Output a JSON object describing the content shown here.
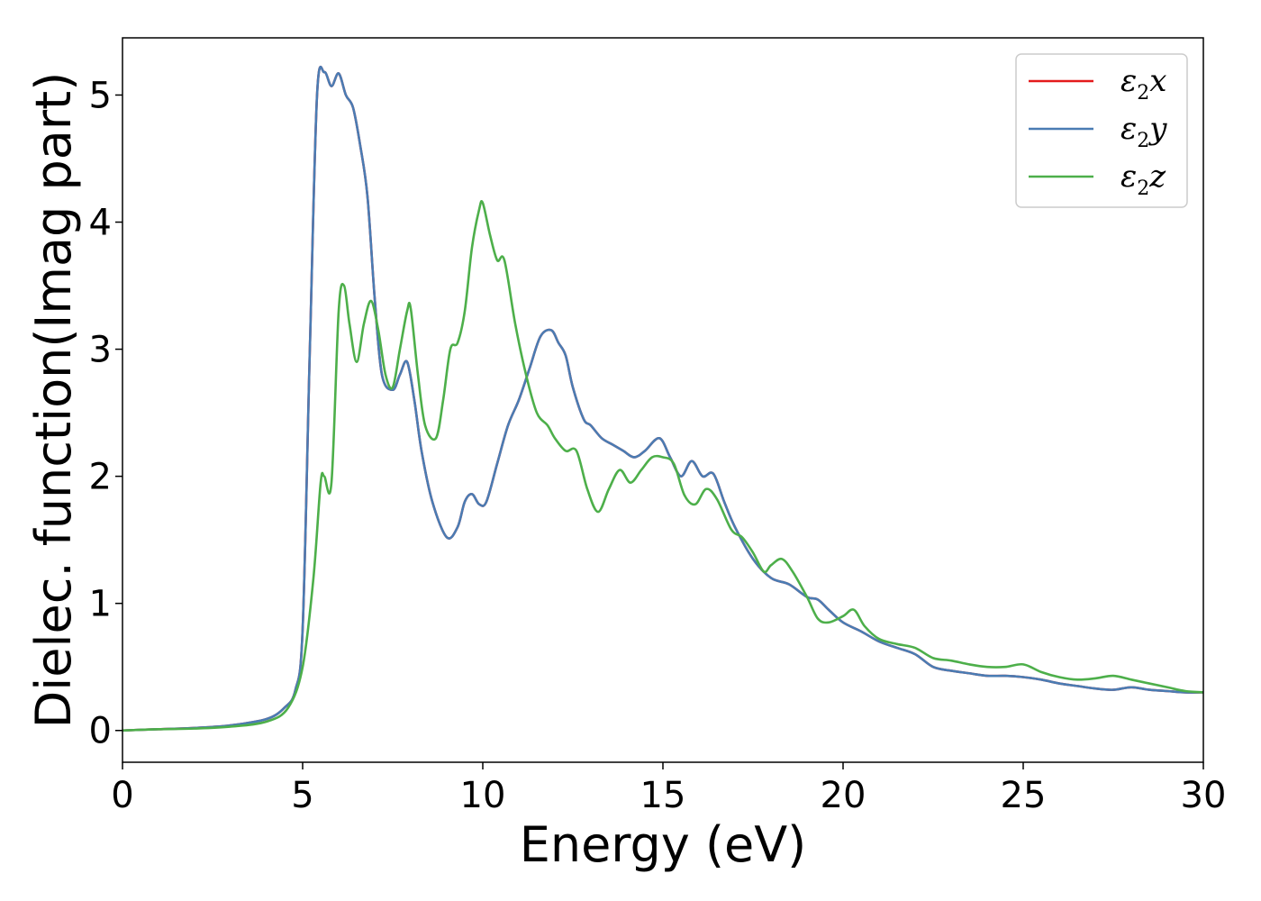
{
  "chart_data": {
    "type": "line",
    "title": "",
    "xlabel": "Energy (eV)",
    "ylabel": "Dielec. function(Imag part)",
    "xlim": [
      0,
      30
    ],
    "ylim": [
      -0.25,
      5.45
    ],
    "xticks": [
      0,
      5,
      10,
      15,
      20,
      25,
      30
    ],
    "yticks": [
      0,
      1,
      2,
      3,
      4,
      5
    ],
    "grid": false,
    "legend_position": "top-right",
    "series": [
      {
        "name": "ε2x",
        "symbol": "ε",
        "sub": "2",
        "suffix": "x",
        "color": "#e41a1c",
        "x": [
          0,
          1,
          2,
          3,
          4,
          4.5,
          4.8,
          5.0,
          5.2,
          5.4,
          5.6,
          5.8,
          6.0,
          6.2,
          6.4,
          6.6,
          6.8,
          7.0,
          7.2,
          7.5,
          7.7,
          7.9,
          8.1,
          8.3,
          8.6,
          9.0,
          9.3,
          9.5,
          9.7,
          9.9,
          10.1,
          10.4,
          10.7,
          11.0,
          11.3,
          11.6,
          11.9,
          12.1,
          12.3,
          12.5,
          12.8,
          13.0,
          13.3,
          13.6,
          13.9,
          14.2,
          14.5,
          14.9,
          15.2,
          15.5,
          15.8,
          16.1,
          16.4,
          16.7,
          17.0,
          17.5,
          18.0,
          18.5,
          19.0,
          19.3,
          19.6,
          20.0,
          20.5,
          21.0,
          21.5,
          22.0,
          22.5,
          23.0,
          23.5,
          24.0,
          24.5,
          25.0,
          25.5,
          26.0,
          26.5,
          27.0,
          27.5,
          28.0,
          28.5,
          29.0,
          29.5,
          30.0
        ],
        "y": [
          0.0,
          0.01,
          0.02,
          0.04,
          0.09,
          0.18,
          0.32,
          0.8,
          3.0,
          5.0,
          5.18,
          5.07,
          5.17,
          5.0,
          4.9,
          4.6,
          4.2,
          3.4,
          2.8,
          2.68,
          2.8,
          2.9,
          2.6,
          2.2,
          1.8,
          1.52,
          1.6,
          1.8,
          1.86,
          1.78,
          1.8,
          2.1,
          2.4,
          2.6,
          2.85,
          3.1,
          3.15,
          3.05,
          2.95,
          2.7,
          2.45,
          2.4,
          2.3,
          2.25,
          2.2,
          2.15,
          2.2,
          2.3,
          2.15,
          2.0,
          2.12,
          2.0,
          2.02,
          1.8,
          1.6,
          1.35,
          1.2,
          1.15,
          1.05,
          1.03,
          0.95,
          0.85,
          0.78,
          0.7,
          0.65,
          0.6,
          0.5,
          0.47,
          0.45,
          0.43,
          0.43,
          0.42,
          0.4,
          0.37,
          0.35,
          0.33,
          0.32,
          0.34,
          0.32,
          0.31,
          0.3,
          0.3
        ]
      },
      {
        "name": "ε2y",
        "symbol": "ε",
        "sub": "2",
        "suffix": "y",
        "color": "#4a7cb3",
        "x": [
          0,
          1,
          2,
          3,
          4,
          4.5,
          4.8,
          5.0,
          5.2,
          5.4,
          5.6,
          5.8,
          6.0,
          6.2,
          6.4,
          6.6,
          6.8,
          7.0,
          7.2,
          7.5,
          7.7,
          7.9,
          8.1,
          8.3,
          8.6,
          9.0,
          9.3,
          9.5,
          9.7,
          9.9,
          10.1,
          10.4,
          10.7,
          11.0,
          11.3,
          11.6,
          11.9,
          12.1,
          12.3,
          12.5,
          12.8,
          13.0,
          13.3,
          13.6,
          13.9,
          14.2,
          14.5,
          14.9,
          15.2,
          15.5,
          15.8,
          16.1,
          16.4,
          16.7,
          17.0,
          17.5,
          18.0,
          18.5,
          19.0,
          19.3,
          19.6,
          20.0,
          20.5,
          21.0,
          21.5,
          22.0,
          22.5,
          23.0,
          23.5,
          24.0,
          24.5,
          25.0,
          25.5,
          26.0,
          26.5,
          27.0,
          27.5,
          28.0,
          28.5,
          29.0,
          29.5,
          30.0
        ],
        "y": [
          0.0,
          0.01,
          0.02,
          0.04,
          0.09,
          0.18,
          0.32,
          0.8,
          3.0,
          5.0,
          5.18,
          5.07,
          5.17,
          5.0,
          4.9,
          4.6,
          4.2,
          3.4,
          2.8,
          2.68,
          2.8,
          2.9,
          2.6,
          2.2,
          1.8,
          1.52,
          1.6,
          1.8,
          1.86,
          1.78,
          1.8,
          2.1,
          2.4,
          2.6,
          2.85,
          3.1,
          3.15,
          3.05,
          2.95,
          2.7,
          2.45,
          2.4,
          2.3,
          2.25,
          2.2,
          2.15,
          2.2,
          2.3,
          2.15,
          2.0,
          2.12,
          2.0,
          2.02,
          1.8,
          1.6,
          1.35,
          1.2,
          1.15,
          1.05,
          1.03,
          0.95,
          0.85,
          0.78,
          0.7,
          0.65,
          0.6,
          0.5,
          0.47,
          0.45,
          0.43,
          0.43,
          0.42,
          0.4,
          0.37,
          0.35,
          0.33,
          0.32,
          0.34,
          0.32,
          0.31,
          0.3,
          0.3
        ]
      },
      {
        "name": "ε2z",
        "symbol": "ε",
        "sub": "2",
        "suffix": "z",
        "color": "#4daf4a",
        "x": [
          0,
          1,
          2,
          3,
          4,
          4.6,
          5.0,
          5.3,
          5.5,
          5.6,
          5.8,
          6.0,
          6.15,
          6.3,
          6.5,
          6.7,
          6.9,
          7.1,
          7.3,
          7.5,
          7.7,
          7.9,
          8.0,
          8.2,
          8.4,
          8.7,
          8.9,
          9.1,
          9.3,
          9.5,
          9.7,
          9.9,
          10.0,
          10.2,
          10.4,
          10.6,
          10.9,
          11.2,
          11.5,
          11.8,
          12.0,
          12.3,
          12.6,
          12.9,
          13.2,
          13.5,
          13.8,
          14.1,
          14.4,
          14.7,
          15.0,
          15.3,
          15.6,
          15.9,
          16.2,
          16.5,
          16.9,
          17.2,
          17.5,
          17.8,
          18.0,
          18.3,
          18.6,
          19.0,
          19.3,
          19.6,
          20.0,
          20.3,
          20.6,
          21.0,
          21.5,
          22.0,
          22.5,
          23.0,
          23.5,
          24.0,
          24.5,
          25.0,
          25.5,
          26.0,
          26.5,
          27.0,
          27.5,
          28.0,
          28.5,
          29.0,
          29.5,
          30.0
        ],
        "y": [
          0.0,
          0.01,
          0.015,
          0.03,
          0.07,
          0.18,
          0.5,
          1.2,
          1.95,
          2.0,
          1.95,
          3.3,
          3.5,
          3.2,
          2.9,
          3.2,
          3.38,
          3.15,
          2.8,
          2.7,
          3.0,
          3.3,
          3.32,
          2.8,
          2.4,
          2.3,
          2.6,
          3.0,
          3.05,
          3.3,
          3.8,
          4.1,
          4.15,
          3.9,
          3.7,
          3.7,
          3.2,
          2.8,
          2.5,
          2.4,
          2.3,
          2.2,
          2.2,
          1.9,
          1.72,
          1.9,
          2.05,
          1.95,
          2.05,
          2.15,
          2.15,
          2.1,
          1.85,
          1.78,
          1.9,
          1.82,
          1.58,
          1.52,
          1.4,
          1.25,
          1.3,
          1.35,
          1.25,
          1.05,
          0.88,
          0.85,
          0.9,
          0.95,
          0.82,
          0.72,
          0.68,
          0.65,
          0.57,
          0.55,
          0.52,
          0.5,
          0.5,
          0.52,
          0.46,
          0.42,
          0.4,
          0.41,
          0.43,
          0.4,
          0.37,
          0.34,
          0.31,
          0.3
        ]
      }
    ]
  }
}
